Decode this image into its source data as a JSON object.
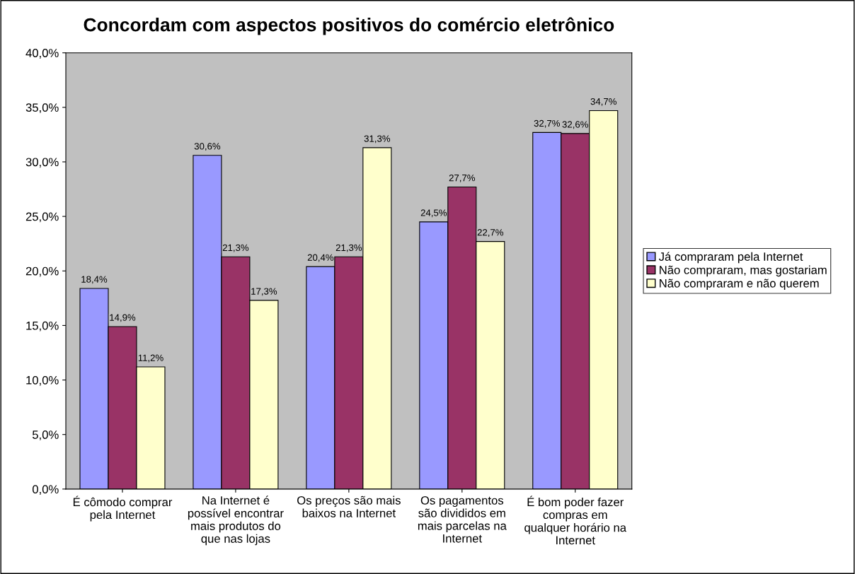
{
  "chart_data": {
    "type": "bar",
    "title": "Concordam com aspectos positivos do comércio eletrônico",
    "categories": [
      "É cômodo comprar\npela Internet",
      "Na Internet é\npossível encontrar\nmais produtos do\nque nas lojas",
      "Os preços são mais\nbaixos na Internet",
      "Os pagamentos\nsão divididos em\nmais parcelas na\nInternet",
      "É bom poder fazer\ncompras em\nqualquer horário na\nInternet"
    ],
    "series": [
      {
        "name": "Já compraram pela Internet",
        "color": "#9999ff",
        "values": [
          18.4,
          30.6,
          20.4,
          24.5,
          32.7
        ],
        "value_labels": [
          "18,4%",
          "30,6%",
          "20,4%",
          "24,5%",
          "32,7%"
        ]
      },
      {
        "name": "Não compraram, mas gostariam",
        "color": "#993366",
        "values": [
          14.9,
          21.3,
          21.3,
          27.7,
          32.6
        ],
        "value_labels": [
          "14,9%",
          "21,3%",
          "21,3%",
          "27,7%",
          "32,6%"
        ]
      },
      {
        "name": "Não compraram e não querem",
        "color": "#ffffcc",
        "values": [
          11.2,
          17.3,
          31.3,
          22.7,
          34.7
        ],
        "value_labels": [
          "11,2%",
          "17,3%",
          "31,3%",
          "22,7%",
          "34,7%"
        ]
      }
    ],
    "ylim": [
      0,
      40
    ],
    "yticks": [
      {
        "value": 0,
        "label": "0,0%"
      },
      {
        "value": 5,
        "label": "5,0%"
      },
      {
        "value": 10,
        "label": "10,0%"
      },
      {
        "value": 15,
        "label": "15,0%"
      },
      {
        "value": 20,
        "label": "20,0%"
      },
      {
        "value": 25,
        "label": "25,0%"
      },
      {
        "value": 30,
        "label": "30,0%"
      },
      {
        "value": 35,
        "label": "35,0%"
      },
      {
        "value": 40,
        "label": "40,0%"
      }
    ],
    "grid": false,
    "legend": "right"
  }
}
